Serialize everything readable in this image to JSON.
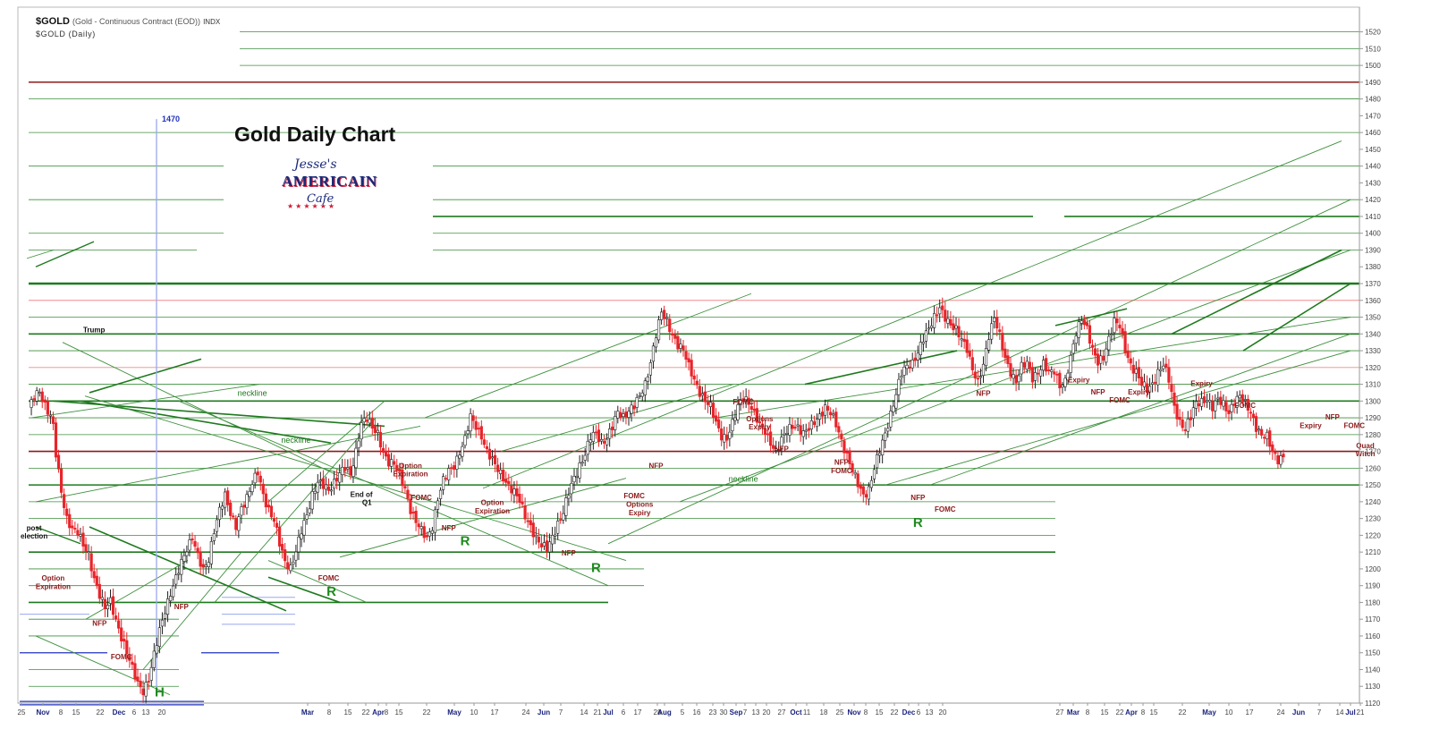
{
  "header": {
    "symbol": "$GOLD",
    "description": "(Gold - Continuous Contract (EOD))",
    "exchange": "INDX",
    "period": "$GOLD (Daily)"
  },
  "title": "Gold Daily Chart",
  "logo": {
    "line1": "Jesse's",
    "line2": "AMERICAIN",
    "line3": "Cafe"
  },
  "colors": {
    "up": "#ffffff",
    "down": "#e8242a",
    "candle_outline": "#222222",
    "support": "#1e7a1e",
    "thin_green": "#3c8f3c",
    "red_line": "#8b1a1a",
    "pink_line": "#f08a8a",
    "blue_line": "#2233bb",
    "light_blue": "#9aa8ee",
    "annotation": "#8b1a1a",
    "pattern_label": "#1e8a1e"
  },
  "chart_data": {
    "type": "candlestick",
    "ylim": [
      1115,
      1525
    ],
    "y_ticks": [
      1120,
      1130,
      1140,
      1150,
      1160,
      1170,
      1180,
      1190,
      1200,
      1210,
      1220,
      1230,
      1240,
      1250,
      1260,
      1270,
      1280,
      1290,
      1300,
      1310,
      1320,
      1330,
      1340,
      1350,
      1360,
      1370,
      1380,
      1390,
      1400,
      1410,
      1420,
      1430,
      1440,
      1450,
      1460,
      1470,
      1480,
      1490,
      1500,
      1510,
      1520
    ],
    "x_tick_labels": [
      "25",
      "Nov",
      "8",
      "15",
      "22",
      "Dec",
      "6",
      "13",
      "20",
      "Mar",
      "8",
      "15",
      "22",
      "Apr",
      "8",
      "15",
      "22",
      "May",
      "10",
      "17",
      "24",
      "Jun",
      "7",
      "14",
      "21",
      "Jul",
      "6",
      "17",
      "28",
      "Aug",
      "5",
      "16",
      "23",
      "30",
      "Sep",
      "7",
      "13",
      "20",
      "27",
      "Oct",
      "11",
      "18",
      "25",
      "Nov",
      "8",
      "15",
      "22",
      "Dec",
      "6",
      "13",
      "20",
      "27",
      "Mar",
      "8",
      "15",
      "22",
      "Apr",
      "8",
      "15",
      "22",
      "May",
      "10",
      "17",
      "24",
      "Jun",
      "7",
      "14",
      "21",
      "Jul"
    ],
    "close_path": [
      [
        0,
        1295
      ],
      [
        2,
        1302
      ],
      [
        4,
        1305
      ],
      [
        6,
        1298
      ],
      [
        8,
        1292
      ],
      [
        9,
        1285
      ],
      [
        10,
        1268
      ],
      [
        12,
        1245
      ],
      [
        14,
        1230
      ],
      [
        16,
        1225
      ],
      [
        18,
        1222
      ],
      [
        20,
        1213
      ],
      [
        22,
        1208
      ],
      [
        24,
        1195
      ],
      [
        26,
        1185
      ],
      [
        28,
        1176
      ],
      [
        30,
        1180
      ],
      [
        32,
        1170
      ],
      [
        34,
        1160
      ],
      [
        36,
        1150
      ],
      [
        38,
        1140
      ],
      [
        40,
        1132
      ],
      [
        42,
        1128
      ],
      [
        44,
        1134
      ],
      [
        46,
        1148
      ],
      [
        48,
        1163
      ],
      [
        50,
        1176
      ],
      [
        52,
        1186
      ],
      [
        54,
        1194
      ],
      [
        56,
        1203
      ],
      [
        58,
        1212
      ],
      [
        60,
        1220
      ],
      [
        62,
        1208
      ],
      [
        64,
        1198
      ],
      [
        66,
        1205
      ],
      [
        68,
        1224
      ],
      [
        70,
        1236
      ],
      [
        72,
        1243
      ],
      [
        74,
        1232
      ],
      [
        76,
        1226
      ],
      [
        78,
        1237
      ],
      [
        80,
        1242
      ],
      [
        82,
        1250
      ],
      [
        84,
        1258
      ],
      [
        86,
        1245
      ],
      [
        88,
        1235
      ],
      [
        90,
        1228
      ],
      [
        92,
        1215
      ],
      [
        94,
        1205
      ],
      [
        96,
        1201
      ],
      [
        98,
        1210
      ],
      [
        100,
        1222
      ],
      [
        102,
        1232
      ],
      [
        104,
        1245
      ],
      [
        106,
        1252
      ],
      [
        108,
        1249
      ],
      [
        110,
        1246
      ],
      [
        112,
        1252
      ],
      [
        114,
        1258
      ],
      [
        116,
        1260
      ],
      [
        118,
        1255
      ],
      [
        120,
        1270
      ],
      [
        122,
        1288
      ],
      [
        124,
        1290
      ],
      [
        126,
        1283
      ],
      [
        128,
        1280
      ],
      [
        130,
        1270
      ],
      [
        132,
        1264
      ],
      [
        134,
        1262
      ],
      [
        136,
        1255
      ],
      [
        138,
        1248
      ],
      [
        140,
        1236
      ],
      [
        142,
        1228
      ],
      [
        144,
        1222
      ],
      [
        146,
        1218
      ],
      [
        148,
        1226
      ],
      [
        150,
        1242
      ],
      [
        152,
        1252
      ],
      [
        154,
        1258
      ],
      [
        156,
        1262
      ],
      [
        158,
        1270
      ],
      [
        160,
        1277
      ],
      [
        162,
        1290
      ],
      [
        164,
        1285
      ],
      [
        166,
        1280
      ],
      [
        168,
        1270
      ],
      [
        170,
        1264
      ],
      [
        172,
        1259
      ],
      [
        174,
        1255
      ],
      [
        176,
        1250
      ],
      [
        178,
        1245
      ],
      [
        180,
        1240
      ],
      [
        182,
        1232
      ],
      [
        184,
        1226
      ],
      [
        186,
        1218
      ],
      [
        188,
        1213
      ],
      [
        190,
        1212
      ],
      [
        192,
        1220
      ],
      [
        194,
        1227
      ],
      [
        196,
        1233
      ],
      [
        198,
        1245
      ],
      [
        200,
        1255
      ],
      [
        202,
        1262
      ],
      [
        204,
        1268
      ],
      [
        206,
        1278
      ],
      [
        208,
        1281
      ],
      [
        210,
        1276
      ],
      [
        212,
        1278
      ],
      [
        214,
        1284
      ],
      [
        216,
        1293
      ],
      [
        218,
        1291
      ],
      [
        220,
        1295
      ],
      [
        222,
        1297
      ],
      [
        224,
        1302
      ],
      [
        226,
        1310
      ],
      [
        228,
        1324
      ],
      [
        230,
        1340
      ],
      [
        232,
        1352
      ],
      [
        234,
        1347
      ],
      [
        236,
        1340
      ],
      [
        238,
        1334
      ],
      [
        240,
        1330
      ],
      [
        242,
        1320
      ],
      [
        244,
        1313
      ],
      [
        246,
        1306
      ],
      [
        248,
        1300
      ],
      [
        250,
        1296
      ],
      [
        252,
        1287
      ],
      [
        254,
        1280
      ],
      [
        256,
        1278
      ],
      [
        258,
        1286
      ],
      [
        260,
        1296
      ],
      [
        262,
        1303
      ],
      [
        264,
        1300
      ],
      [
        266,
        1292
      ],
      [
        268,
        1285
      ],
      [
        270,
        1282
      ],
      [
        272,
        1276
      ],
      [
        274,
        1270
      ],
      [
        276,
        1276
      ],
      [
        278,
        1282
      ],
      [
        280,
        1286
      ],
      [
        282,
        1285
      ],
      [
        284,
        1280
      ],
      [
        286,
        1283
      ],
      [
        288,
        1288
      ],
      [
        290,
        1292
      ],
      [
        292,
        1296
      ],
      [
        294,
        1292
      ],
      [
        296,
        1286
      ],
      [
        298,
        1277
      ],
      [
        300,
        1268
      ],
      [
        302,
        1258
      ],
      [
        304,
        1250
      ],
      [
        306,
        1244
      ],
      [
        308,
        1248
      ],
      [
        310,
        1260
      ],
      [
        312,
        1270
      ],
      [
        314,
        1280
      ],
      [
        316,
        1293
      ],
      [
        318,
        1305
      ],
      [
        320,
        1316
      ],
      [
        322,
        1320
      ],
      [
        324,
        1323
      ],
      [
        326,
        1330
      ],
      [
        328,
        1337
      ],
      [
        330,
        1342
      ],
      [
        332,
        1350
      ],
      [
        334,
        1357
      ],
      [
        336,
        1350
      ],
      [
        338,
        1344
      ],
      [
        340,
        1342
      ],
      [
        342,
        1338
      ],
      [
        344,
        1332
      ],
      [
        346,
        1318
      ],
      [
        348,
        1310
      ],
      [
        350,
        1322
      ],
      [
        352,
        1340
      ],
      [
        354,
        1350
      ],
      [
        356,
        1338
      ],
      [
        358,
        1325
      ],
      [
        360,
        1318
      ],
      [
        362,
        1312
      ],
      [
        364,
        1320
      ],
      [
        366,
        1322
      ],
      [
        368,
        1314
      ],
      [
        370,
        1318
      ],
      [
        372,
        1322
      ],
      [
        374,
        1316
      ],
      [
        376,
        1318
      ],
      [
        378,
        1310
      ],
      [
        380,
        1312
      ],
      [
        382,
        1325
      ],
      [
        384,
        1340
      ],
      [
        386,
        1350
      ],
      [
        388,
        1344
      ],
      [
        390,
        1330
      ],
      [
        392,
        1322
      ],
      [
        394,
        1326
      ],
      [
        396,
        1338
      ],
      [
        398,
        1348
      ],
      [
        400,
        1344
      ],
      [
        402,
        1330
      ],
      [
        404,
        1322
      ],
      [
        406,
        1318
      ],
      [
        408,
        1310
      ],
      [
        410,
        1306
      ],
      [
        412,
        1310
      ],
      [
        414,
        1318
      ],
      [
        416,
        1322
      ],
      [
        418,
        1312
      ],
      [
        420,
        1296
      ],
      [
        422,
        1288
      ],
      [
        424,
        1284
      ],
      [
        426,
        1290
      ],
      [
        428,
        1298
      ],
      [
        430,
        1300
      ],
      [
        432,
        1302
      ],
      [
        434,
        1296
      ],
      [
        436,
        1300
      ],
      [
        438,
        1298
      ],
      [
        440,
        1294
      ],
      [
        442,
        1300
      ],
      [
        444,
        1302
      ],
      [
        446,
        1298
      ],
      [
        448,
        1294
      ],
      [
        450,
        1285
      ],
      [
        452,
        1279
      ],
      [
        454,
        1278
      ],
      [
        456,
        1270
      ],
      [
        458,
        1266
      ],
      [
        460,
        1267
      ]
    ],
    "annotations": [
      {
        "text": "Trump",
        "x": 24,
        "price": 1341
      },
      {
        "text": "post",
        "x": 2,
        "price": 1223
      },
      {
        "text": "election",
        "x": 2,
        "price": 1218
      },
      {
        "text": "Option",
        "x": 9,
        "price": 1193
      },
      {
        "text": "Expiration",
        "x": 9,
        "price": 1188
      },
      {
        "text": "NFP",
        "x": 26,
        "price": 1166
      },
      {
        "text": "FOMC",
        "x": 34,
        "price": 1146
      },
      {
        "text": "NFP",
        "x": 56,
        "price": 1176
      },
      {
        "text": "FOMC",
        "x": 110,
        "price": 1193
      },
      {
        "text": "End of",
        "x": 122,
        "price": 1243
      },
      {
        "text": "Q1",
        "x": 124,
        "price": 1238
      },
      {
        "text": "Option",
        "x": 140,
        "price": 1260
      },
      {
        "text": "Expiration",
        "x": 140,
        "price": 1255
      },
      {
        "text": "FOMC",
        "x": 144,
        "price": 1241
      },
      {
        "text": "NFP",
        "x": 154,
        "price": 1223
      },
      {
        "text": "Option",
        "x": 170,
        "price": 1238
      },
      {
        "text": "Expiration",
        "x": 170,
        "price": 1233
      },
      {
        "text": "NFP",
        "x": 198,
        "price": 1208
      },
      {
        "text": "FOMC",
        "x": 222,
        "price": 1242
      },
      {
        "text": "Options",
        "x": 224,
        "price": 1237
      },
      {
        "text": "Expiry",
        "x": 224,
        "price": 1232
      },
      {
        "text": "NFP",
        "x": 230,
        "price": 1260
      },
      {
        "text": "FOMC",
        "x": 262,
        "price": 1298
      },
      {
        "text": "Options",
        "x": 268,
        "price": 1288
      },
      {
        "text": "Expiry",
        "x": 268,
        "price": 1283
      },
      {
        "text": "NFP",
        "x": 276,
        "price": 1270
      },
      {
        "text": "NFP",
        "x": 298,
        "price": 1262
      },
      {
        "text": "FOMC",
        "x": 298,
        "price": 1257
      },
      {
        "text": "NFP",
        "x": 326,
        "price": 1241
      },
      {
        "text": "FOMC",
        "x": 336,
        "price": 1234
      },
      {
        "text": "NFP",
        "x": 350,
        "price": 1303
      },
      {
        "text": "Expiry",
        "x": 385,
        "price": 1311
      },
      {
        "text": "NFP",
        "x": 392,
        "price": 1304
      },
      {
        "text": "FOMC",
        "x": 400,
        "price": 1299
      },
      {
        "text": "Expiry",
        "x": 407,
        "price": 1304
      },
      {
        "text": "Expiry",
        "x": 430,
        "price": 1309
      },
      {
        "text": "FOMC",
        "x": 446,
        "price": 1296
      },
      {
        "text": "Expiry",
        "x": 470,
        "price": 1284
      },
      {
        "text": "NFP",
        "x": 478,
        "price": 1289
      },
      {
        "text": "FOMC",
        "x": 486,
        "price": 1284
      },
      {
        "text": "Quad",
        "x": 490,
        "price": 1272
      },
      {
        "text": "Witch",
        "x": 490,
        "price": 1267
      }
    ],
    "pattern_labels": [
      {
        "text": "H",
        "x": 48,
        "price": 1124
      },
      {
        "text": "R",
        "x": 111,
        "price": 1184
      },
      {
        "text": "R",
        "x": 160,
        "price": 1214
      },
      {
        "text": "R",
        "x": 208,
        "price": 1198
      },
      {
        "text": "R",
        "x": 326,
        "price": 1225
      }
    ],
    "neckline_labels": [
      {
        "text": "neckline",
        "x": 82,
        "price": 1303
      },
      {
        "text": "neckline",
        "x": 98,
        "price": 1275
      },
      {
        "text": "neckline",
        "x": 262,
        "price": 1252
      }
    ],
    "marker": {
      "text": "1470",
      "x": 56,
      "price": 1468
    }
  }
}
